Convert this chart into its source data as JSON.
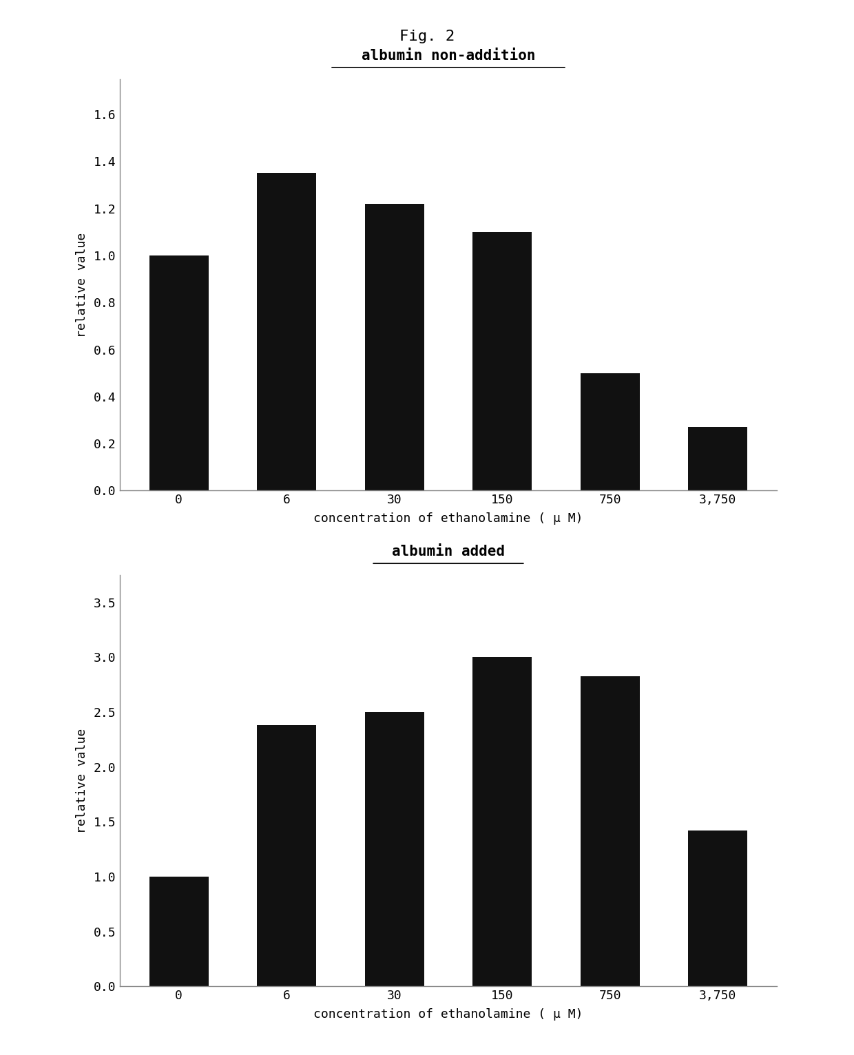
{
  "fig_title": "Fig. 2",
  "chart1": {
    "title": "albumin non-addition",
    "categories": [
      "0",
      "6",
      "30",
      "150",
      "750",
      "3,750"
    ],
    "values": [
      1.0,
      1.35,
      1.22,
      1.1,
      0.5,
      0.27
    ],
    "ylabel": "relative value",
    "xlabel": "concentration of ethanolamine ( μ M)",
    "ylim": [
      0.0,
      1.75
    ],
    "yticks": [
      0.0,
      0.2,
      0.4,
      0.6,
      0.8,
      1.0,
      1.2,
      1.4,
      1.6
    ],
    "ytick_labels": [
      "0.0",
      "0.2",
      "0.4",
      "0.6",
      "0.8",
      "1.0",
      "1.2",
      "1.4",
      "1.6"
    ],
    "bar_color": "#111111"
  },
  "chart2": {
    "title": "albumin added",
    "categories": [
      "0",
      "6",
      "30",
      "150",
      "750",
      "3,750"
    ],
    "values": [
      1.0,
      2.38,
      2.5,
      3.0,
      2.83,
      1.42
    ],
    "ylabel": "relative value",
    "xlabel": "concentration of ethanolamine ( μ M)",
    "ylim": [
      0.0,
      3.75
    ],
    "yticks": [
      0.0,
      0.5,
      1.0,
      1.5,
      2.0,
      2.5,
      3.0,
      3.5
    ],
    "ytick_labels": [
      "0.0",
      "0.5",
      "1.0",
      "1.5",
      "2.0",
      "2.5",
      "3.0",
      "3.5"
    ],
    "bar_color": "#111111"
  },
  "background_color": "#ffffff",
  "fig_bg_color": "#ffffff",
  "fig_title_fontsize": 16,
  "title_fontsize": 15,
  "label_fontsize": 13,
  "tick_fontsize": 13
}
